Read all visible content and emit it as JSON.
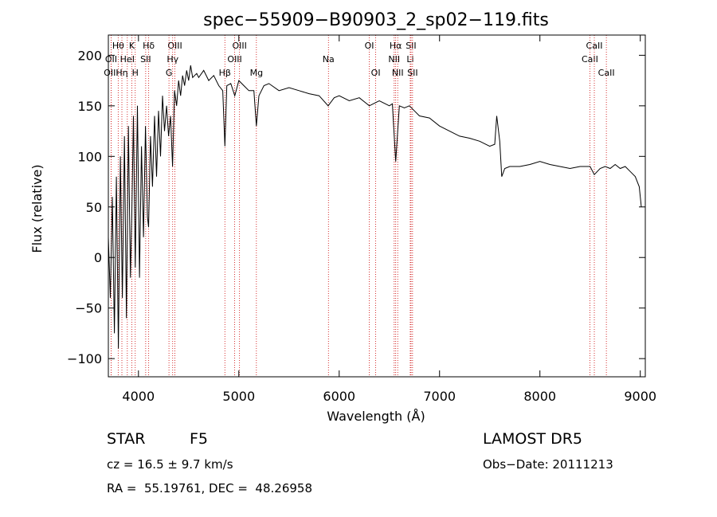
{
  "chart_data": {
    "type": "line",
    "title": "spec−55909−B90903_2_sp02−119.fits",
    "xlabel": "Wavelength (Å)",
    "ylabel": "Flux (relative)",
    "xlim": [
      3700,
      9050
    ],
    "ylim": [
      -118,
      220
    ],
    "x_ticks": [
      {
        "value": 4000,
        "label": "4000"
      },
      {
        "value": 5000,
        "label": "5000"
      },
      {
        "value": 6000,
        "label": "6000"
      },
      {
        "value": 7000,
        "label": "7000"
      },
      {
        "value": 8000,
        "label": "8000"
      },
      {
        "value": 9000,
        "label": "9000"
      }
    ],
    "y_ticks": [
      {
        "value": -100,
        "label": "−100"
      },
      {
        "value": -50,
        "label": "−50"
      },
      {
        "value": 0,
        "label": "0"
      },
      {
        "value": 50,
        "label": "50"
      },
      {
        "value": 100,
        "label": "100"
      },
      {
        "value": 150,
        "label": "150"
      },
      {
        "value": 200,
        "label": "200"
      }
    ],
    "series": [
      {
        "color": "#000000",
        "x": [
          3700,
          3720,
          3740,
          3760,
          3780,
          3800,
          3820,
          3840,
          3860,
          3880,
          3900,
          3920,
          3933,
          3950,
          3968,
          3990,
          4010,
          4030,
          4050,
          4070,
          4090,
          4101,
          4120,
          4140,
          4160,
          4180,
          4200,
          4220,
          4240,
          4260,
          4280,
          4300,
          4320,
          4340,
          4360,
          4380,
          4400,
          4420,
          4440,
          4460,
          4480,
          4500,
          4520,
          4540,
          4560,
          4580,
          4600,
          4650,
          4700,
          4750,
          4800,
          4840,
          4861,
          4880,
          4920,
          4960,
          5000,
          5050,
          5100,
          5150,
          5175,
          5200,
          5250,
          5300,
          5400,
          5500,
          5600,
          5700,
          5800,
          5890,
          5950,
          6000,
          6100,
          6200,
          6300,
          6400,
          6500,
          6530,
          6563,
          6600,
          6650,
          6700,
          6750,
          6800,
          6900,
          7000,
          7100,
          7200,
          7300,
          7400,
          7500,
          7550,
          7570,
          7600,
          7620,
          7650,
          7700,
          7800,
          7900,
          8000,
          8100,
          8200,
          8300,
          8400,
          8500,
          8542,
          8600,
          8650,
          8700,
          8750,
          8800,
          8850,
          8900,
          8950,
          8990,
          9000,
          9010
        ],
        "y": [
          20,
          -40,
          60,
          -75,
          80,
          -90,
          100,
          -40,
          120,
          -60,
          130,
          -20,
          40,
          140,
          -10,
          150,
          -20,
          110,
          20,
          130,
          40,
          30,
          120,
          70,
          140,
          80,
          145,
          100,
          160,
          125,
          150,
          120,
          140,
          90,
          165,
          150,
          175,
          160,
          180,
          170,
          185,
          175,
          190,
          178,
          180,
          182,
          178,
          185,
          175,
          180,
          170,
          165,
          110,
          170,
          172,
          160,
          175,
          170,
          165,
          165,
          130,
          160,
          170,
          172,
          165,
          168,
          165,
          162,
          160,
          150,
          158,
          160,
          155,
          158,
          150,
          155,
          150,
          152,
          95,
          150,
          148,
          150,
          145,
          140,
          138,
          130,
          125,
          120,
          118,
          115,
          110,
          112,
          140,
          115,
          80,
          88,
          90,
          90,
          92,
          95,
          92,
          90,
          88,
          90,
          90,
          82,
          88,
          90,
          88,
          92,
          88,
          90,
          85,
          80,
          70,
          60,
          50
        ]
      }
    ],
    "line_markers": [
      {
        "name": "Hθ",
        "x": 3798,
        "row": 1
      },
      {
        "name": "OII",
        "x": 3727,
        "row": 2
      },
      {
        "name": "OIII",
        "x": 3727,
        "row": 3
      },
      {
        "name": "K",
        "x": 3934,
        "row": 1
      },
      {
        "name": "HeI",
        "x": 3889,
        "row": 2
      },
      {
        "name": "Hη",
        "x": 3835,
        "row": 3
      },
      {
        "name": "H",
        "x": 3968,
        "row": 3
      },
      {
        "name": "Hδ",
        "x": 4102,
        "row": 1
      },
      {
        "name": "SII",
        "x": 4072,
        "row": 2
      },
      {
        "name": "OIII",
        "x": 4363,
        "row": 1
      },
      {
        "name": "Hγ",
        "x": 4341,
        "row": 2
      },
      {
        "name": "G",
        "x": 4304,
        "row": 3
      },
      {
        "name": "OIII",
        "x": 5007,
        "row": 1
      },
      {
        "name": "OIII",
        "x": 4959,
        "row": 2
      },
      {
        "name": "Hβ",
        "x": 4861,
        "row": 3
      },
      {
        "name": "Mg",
        "x": 5175,
        "row": 3
      },
      {
        "name": "Na",
        "x": 5893,
        "row": 2
      },
      {
        "name": "OI",
        "x": 6300,
        "row": 1
      },
      {
        "name": "OI",
        "x": 6364,
        "row": 3
      },
      {
        "name": "Hα",
        "x": 6563,
        "row": 1
      },
      {
        "name": "NII",
        "x": 6548,
        "row": 2
      },
      {
        "name": "NII",
        "x": 6583,
        "row": 3
      },
      {
        "name": "SII",
        "x": 6716,
        "row": 1
      },
      {
        "name": "Li",
        "x": 6708,
        "row": 2
      },
      {
        "name": "SII",
        "x": 6731,
        "row": 3
      },
      {
        "name": "CaII",
        "x": 8498,
        "row": 2
      },
      {
        "name": "CaII",
        "x": 8542,
        "row": 1
      },
      {
        "name": "CaII",
        "x": 8662,
        "row": 3
      }
    ]
  },
  "info": {
    "object_class": "STAR",
    "subclass": "F5",
    "survey": "LAMOST DR5",
    "redshift_text": "cz = 16.5 ± 9.7 km/s",
    "obs_date_text": "Obs−Date: 20111213",
    "coords_text": "RA =  55.19761, DEC =  48.26958"
  }
}
